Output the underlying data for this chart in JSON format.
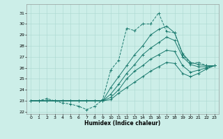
{
  "background_color": "#cceee8",
  "grid_color": "#aad8d0",
  "line_color": "#1a7a6e",
  "xlabel": "Humidex (Indice chaleur)",
  "xlim": [
    -0.5,
    23.5
  ],
  "ylim": [
    21.8,
    31.8
  ],
  "yticks": [
    22,
    23,
    24,
    25,
    26,
    27,
    28,
    29,
    30,
    31
  ],
  "xticks": [
    0,
    1,
    2,
    3,
    4,
    5,
    6,
    7,
    8,
    9,
    10,
    11,
    12,
    13,
    14,
    15,
    16,
    17,
    18,
    19,
    20,
    21,
    22,
    23
  ],
  "series": [
    {
      "style": "--",
      "data": [
        23.0,
        23.0,
        23.2,
        23.0,
        22.8,
        22.7,
        22.5,
        22.2,
        22.5,
        23.1,
        25.8,
        26.7,
        29.6,
        29.4,
        30.0,
        30.0,
        31.0,
        29.3,
        29.2,
        27.2,
        26.4,
        26.5,
        26.2,
        26.2
      ]
    },
    {
      "style": "-",
      "data": [
        23.0,
        23.0,
        23.0,
        23.0,
        23.0,
        23.0,
        23.0,
        23.0,
        23.0,
        23.0,
        24.2,
        25.2,
        26.2,
        27.2,
        28.0,
        29.0,
        29.5,
        29.8,
        29.2,
        27.3,
        26.5,
        26.3,
        26.2,
        26.2
      ]
    },
    {
      "style": "-",
      "data": [
        23.0,
        23.0,
        23.0,
        23.0,
        23.0,
        23.0,
        23.0,
        23.0,
        23.0,
        23.0,
        23.6,
        24.5,
        25.5,
        26.3,
        27.2,
        27.8,
        28.3,
        28.8,
        28.5,
        27.0,
        26.3,
        26.1,
        26.1,
        26.2
      ]
    },
    {
      "style": "-",
      "data": [
        23.0,
        23.0,
        23.0,
        23.0,
        23.0,
        23.0,
        23.0,
        23.0,
        23.0,
        23.0,
        23.3,
        24.0,
        25.0,
        25.7,
        26.2,
        26.8,
        27.2,
        27.6,
        27.5,
        26.2,
        25.6,
        25.8,
        26.0,
        26.2
      ]
    },
    {
      "style": "-",
      "data": [
        23.0,
        23.0,
        23.0,
        23.0,
        23.0,
        23.0,
        23.0,
        23.0,
        23.0,
        23.0,
        23.1,
        23.7,
        24.2,
        24.7,
        25.2,
        25.7,
        26.1,
        26.5,
        26.4,
        25.5,
        25.2,
        25.5,
        25.9,
        26.2
      ]
    }
  ]
}
